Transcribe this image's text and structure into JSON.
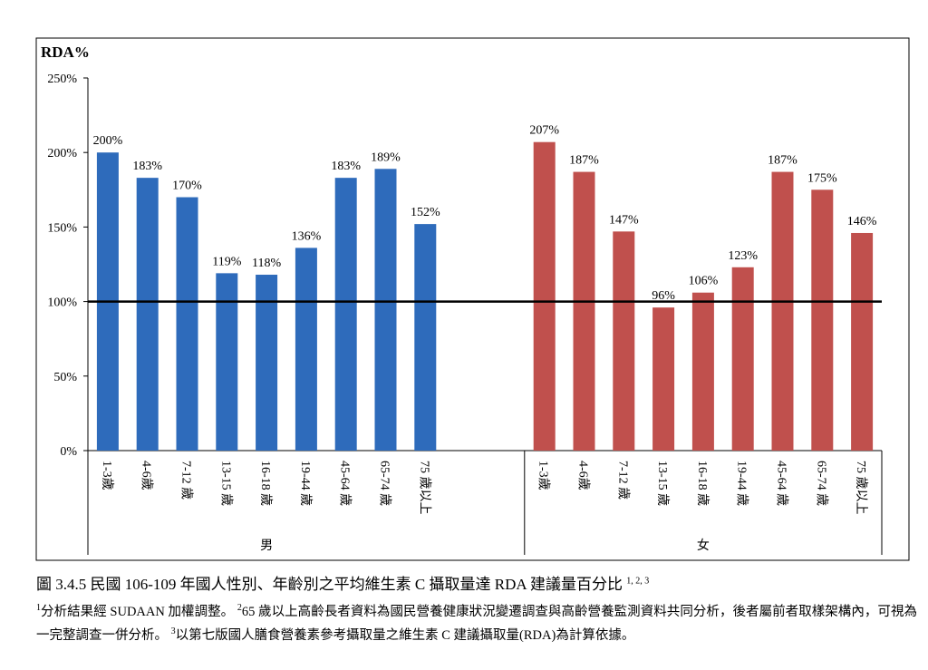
{
  "chart_data": {
    "type": "bar",
    "ylabel": "RDA%",
    "categories": [
      "1-3歲",
      "4-6歲",
      "7-12 歲",
      "13-15 歲",
      "16-18 歲",
      "19-44 歲",
      "45-64 歲",
      "65-74 歲",
      "75 歲以上"
    ],
    "series": [
      {
        "name": "男",
        "color": "#2e6bbb",
        "values": [
          200,
          183,
          170,
          119,
          118,
          136,
          183,
          189,
          152
        ],
        "value_labels": [
          "200%",
          "183%",
          "170%",
          "119%",
          "118%",
          "136%",
          "183%",
          "189%",
          "152%"
        ]
      },
      {
        "name": "女",
        "color": "#c0504d",
        "values": [
          207,
          187,
          147,
          96,
          106,
          123,
          187,
          175,
          146
        ],
        "value_labels": [
          "207%",
          "187%",
          "147%",
          "96%",
          "106%",
          "123%",
          "187%",
          "175%",
          "146%"
        ]
      }
    ],
    "ylim": [
      0,
      250
    ],
    "yticks": [
      {
        "value": 0,
        "label": "0%"
      },
      {
        "value": 50,
        "label": "50%"
      },
      {
        "value": 100,
        "label": "100%"
      },
      {
        "value": 150,
        "label": "150%"
      },
      {
        "value": 200,
        "label": "200%"
      },
      {
        "value": 250,
        "label": "250%"
      }
    ],
    "reference_line": 100
  },
  "caption": {
    "text": "圖 3.4.5 民國 106-109 年國人性別、年齡別之平均維生素 C 攝取量達 RDA 建議量百分比",
    "sup": "1, 2, 3"
  },
  "notes": [
    {
      "sup": "1",
      "text": "分析結果經 SUDAAN 加權調整。"
    },
    {
      "sup": "2",
      "text": "65 歲以上高齡長者資料為國民營養健康狀況變遷調查與高齡營養監測資料共同分析，後者屬前者取樣架構內，可視為一完整調查一併分析。"
    },
    {
      "sup": "3",
      "text": "以第七版國人膳食營養素參考攝取量之維生素 C 建議攝取量(RDA)為計算依據。"
    }
  ]
}
